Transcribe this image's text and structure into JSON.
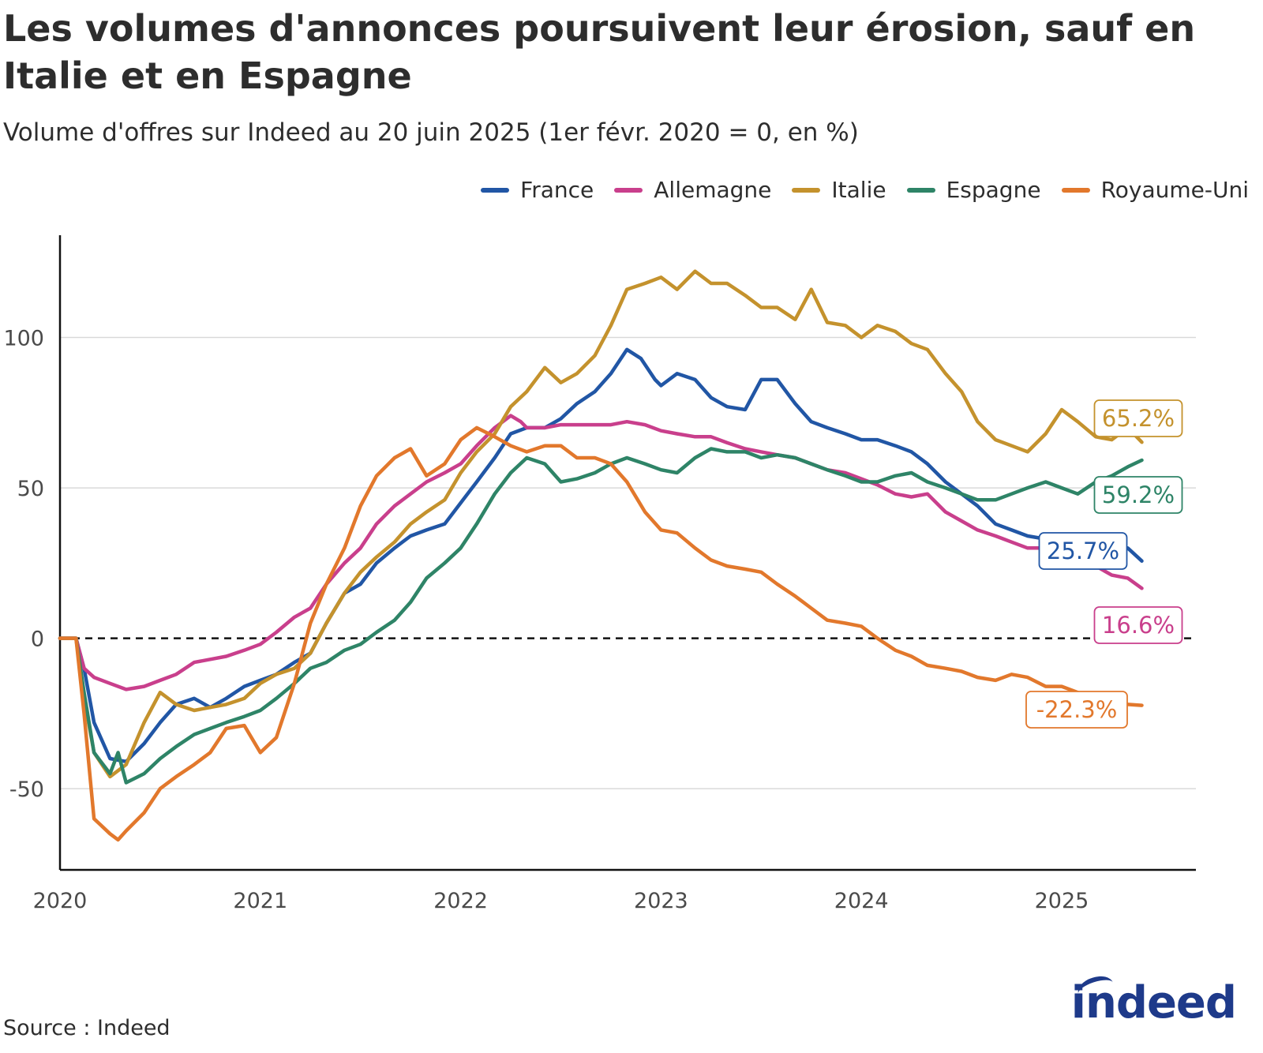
{
  "chart_data": {
    "type": "line",
    "title": "Les volumes d'annonces poursuivent leur érosion, sauf en Italie et en Espagne",
    "subtitle": "Volume d'offres sur Indeed au 20 juin 2025 (1er févr. 2020 = 0, en %)",
    "xlabel": "",
    "ylabel": "",
    "xlim": [
      2020.0,
      2025.67
    ],
    "ylim": [
      -77,
      134
    ],
    "x_ticks": [
      2020,
      2021,
      2022,
      2023,
      2024,
      2025
    ],
    "x_tick_labels": [
      "2020",
      "2021",
      "2022",
      "2023",
      "2024",
      "2025"
    ],
    "y_ticks": [
      -50,
      0,
      50,
      100
    ],
    "y_tick_labels": [
      "-50",
      "0",
      "50",
      "100"
    ],
    "baseline": 0,
    "grid": "horizontal",
    "legend_position": "top-right",
    "series": [
      {
        "name": "France",
        "color": "#2156a5",
        "end_label": "25.7%",
        "x": [
          2020.0,
          2020.08,
          2020.12,
          2020.17,
          2020.25,
          2020.33,
          2020.42,
          2020.5,
          2020.58,
          2020.67,
          2020.75,
          2020.83,
          2020.92,
          2021.0,
          2021.08,
          2021.17,
          2021.25,
          2021.33,
          2021.42,
          2021.5,
          2021.58,
          2021.67,
          2021.75,
          2021.83,
          2021.92,
          2022.0,
          2022.08,
          2022.17,
          2022.25,
          2022.33,
          2022.42,
          2022.5,
          2022.58,
          2022.67,
          2022.75,
          2022.83,
          2022.9,
          2022.97,
          2023.0,
          2023.08,
          2023.17,
          2023.25,
          2023.33,
          2023.42,
          2023.5,
          2023.58,
          2023.67,
          2023.75,
          2023.83,
          2023.92,
          2024.0,
          2024.08,
          2024.17,
          2024.25,
          2024.33,
          2024.42,
          2024.5,
          2024.58,
          2024.67,
          2024.75,
          2024.83,
          2024.92,
          2025.0,
          2025.08,
          2025.17,
          2025.25,
          2025.33,
          2025.4
        ],
        "y": [
          0,
          0,
          -10,
          -28,
          -40,
          -41,
          -35,
          -28,
          -22,
          -20,
          -23,
          -20,
          -16,
          -14,
          -12,
          -8,
          -5,
          5,
          15,
          18,
          25,
          30,
          34,
          36,
          38,
          45,
          52,
          60,
          68,
          70,
          70,
          73,
          78,
          82,
          88,
          96,
          93,
          86,
          84,
          88,
          86,
          80,
          77,
          76,
          86,
          86,
          78,
          72,
          70,
          68,
          66,
          66,
          64,
          62,
          58,
          52,
          48,
          44,
          38,
          36,
          34,
          33,
          31,
          31,
          31,
          31,
          30,
          25.7
        ]
      },
      {
        "name": "Allemagne",
        "color": "#c93f8c",
        "end_label": "16.6%",
        "x": [
          2020.0,
          2020.08,
          2020.12,
          2020.17,
          2020.25,
          2020.33,
          2020.42,
          2020.5,
          2020.58,
          2020.67,
          2020.75,
          2020.83,
          2020.92,
          2021.0,
          2021.08,
          2021.17,
          2021.25,
          2021.33,
          2021.42,
          2021.5,
          2021.58,
          2021.67,
          2021.75,
          2021.83,
          2021.92,
          2022.0,
          2022.08,
          2022.17,
          2022.25,
          2022.3,
          2022.33,
          2022.42,
          2022.5,
          2022.58,
          2022.67,
          2022.75,
          2022.83,
          2022.92,
          2023.0,
          2023.08,
          2023.17,
          2023.25,
          2023.33,
          2023.42,
          2023.5,
          2023.58,
          2023.67,
          2023.75,
          2023.83,
          2023.92,
          2024.0,
          2024.08,
          2024.17,
          2024.25,
          2024.33,
          2024.42,
          2024.5,
          2024.58,
          2024.67,
          2024.75,
          2024.83,
          2024.92,
          2025.0,
          2025.08,
          2025.17,
          2025.25,
          2025.33,
          2025.4
        ],
        "y": [
          0,
          0,
          -10,
          -13,
          -15,
          -17,
          -16,
          -14,
          -12,
          -8,
          -7,
          -6,
          -4,
          -2,
          2,
          7,
          10,
          18,
          25,
          30,
          38,
          44,
          48,
          52,
          55,
          58,
          64,
          70,
          74,
          72,
          70,
          70,
          71,
          71,
          71,
          71,
          72,
          71,
          69,
          68,
          67,
          67,
          65,
          63,
          62,
          61,
          60,
          58,
          56,
          55,
          53,
          51,
          48,
          47,
          48,
          42,
          39,
          36,
          34,
          32,
          30,
          30,
          30,
          28,
          24,
          21,
          20,
          16.6
        ]
      },
      {
        "name": "Italie",
        "color": "#c4922d",
        "end_label": "65.2%",
        "x": [
          2020.0,
          2020.08,
          2020.12,
          2020.17,
          2020.25,
          2020.33,
          2020.42,
          2020.5,
          2020.58,
          2020.67,
          2020.75,
          2020.83,
          2020.92,
          2021.0,
          2021.08,
          2021.17,
          2021.25,
          2021.33,
          2021.42,
          2021.5,
          2021.58,
          2021.67,
          2021.75,
          2021.83,
          2021.92,
          2022.0,
          2022.08,
          2022.17,
          2022.25,
          2022.33,
          2022.42,
          2022.5,
          2022.58,
          2022.67,
          2022.75,
          2022.83,
          2022.92,
          2023.0,
          2023.08,
          2023.17,
          2023.25,
          2023.33,
          2023.42,
          2023.5,
          2023.58,
          2023.67,
          2023.75,
          2023.83,
          2023.92,
          2024.0,
          2024.08,
          2024.17,
          2024.25,
          2024.33,
          2024.42,
          2024.5,
          2024.58,
          2024.67,
          2024.75,
          2024.83,
          2024.92,
          2025.0,
          2025.08,
          2025.17,
          2025.25,
          2025.33,
          2025.4
        ],
        "y": [
          0,
          0,
          -20,
          -38,
          -46,
          -42,
          -28,
          -18,
          -22,
          -24,
          -23,
          -22,
          -20,
          -15,
          -12,
          -10,
          -5,
          5,
          15,
          22,
          27,
          32,
          38,
          42,
          46,
          55,
          62,
          68,
          77,
          82,
          90,
          85,
          88,
          94,
          104,
          116,
          118,
          120,
          116,
          122,
          118,
          118,
          114,
          110,
          110,
          106,
          116,
          105,
          104,
          100,
          104,
          102,
          98,
          96,
          88,
          82,
          72,
          66,
          64,
          62,
          68,
          76,
          72,
          67,
          66,
          70,
          65.2
        ]
      },
      {
        "name": "Espagne",
        "color": "#2e8467",
        "end_label": "59.2%",
        "x": [
          2020.0,
          2020.08,
          2020.12,
          2020.17,
          2020.25,
          2020.29,
          2020.33,
          2020.42,
          2020.5,
          2020.58,
          2020.67,
          2020.75,
          2020.83,
          2020.92,
          2021.0,
          2021.08,
          2021.17,
          2021.25,
          2021.33,
          2021.42,
          2021.5,
          2021.58,
          2021.67,
          2021.75,
          2021.83,
          2021.92,
          2022.0,
          2022.08,
          2022.17,
          2022.25,
          2022.33,
          2022.42,
          2022.5,
          2022.58,
          2022.67,
          2022.75,
          2022.83,
          2022.92,
          2023.0,
          2023.08,
          2023.17,
          2023.25,
          2023.33,
          2023.42,
          2023.5,
          2023.58,
          2023.67,
          2023.75,
          2023.83,
          2023.92,
          2024.0,
          2024.08,
          2024.17,
          2024.25,
          2024.33,
          2024.42,
          2024.5,
          2024.58,
          2024.67,
          2024.75,
          2024.83,
          2024.92,
          2025.0,
          2025.08,
          2025.17,
          2025.25,
          2025.33,
          2025.4
        ],
        "y": [
          0,
          0,
          -18,
          -38,
          -45,
          -38,
          -48,
          -45,
          -40,
          -36,
          -32,
          -30,
          -28,
          -26,
          -24,
          -20,
          -15,
          -10,
          -8,
          -4,
          -2,
          2,
          6,
          12,
          20,
          25,
          30,
          38,
          48,
          55,
          60,
          58,
          52,
          53,
          55,
          58,
          60,
          58,
          56,
          55,
          60,
          63,
          62,
          62,
          60,
          61,
          60,
          58,
          56,
          54,
          52,
          52,
          54,
          55,
          52,
          50,
          48,
          46,
          46,
          48,
          50,
          52,
          50,
          48,
          52,
          54,
          57,
          59.2
        ]
      },
      {
        "name": "Royaume-Uni",
        "color": "#e2782c",
        "end_label": "-22.3%",
        "x": [
          2020.0,
          2020.08,
          2020.12,
          2020.17,
          2020.25,
          2020.29,
          2020.33,
          2020.42,
          2020.5,
          2020.58,
          2020.67,
          2020.75,
          2020.83,
          2020.92,
          2021.0,
          2021.08,
          2021.17,
          2021.25,
          2021.33,
          2021.42,
          2021.5,
          2021.58,
          2021.67,
          2021.75,
          2021.83,
          2021.92,
          2022.0,
          2022.08,
          2022.17,
          2022.25,
          2022.33,
          2022.42,
          2022.5,
          2022.58,
          2022.67,
          2022.75,
          2022.83,
          2022.92,
          2023.0,
          2023.08,
          2023.17,
          2023.25,
          2023.33,
          2023.42,
          2023.5,
          2023.58,
          2023.67,
          2023.75,
          2023.83,
          2023.92,
          2024.0,
          2024.08,
          2024.17,
          2024.25,
          2024.33,
          2024.42,
          2024.5,
          2024.58,
          2024.67,
          2024.75,
          2024.83,
          2024.92,
          2025.0,
          2025.08,
          2025.17,
          2025.25,
          2025.33,
          2025.4
        ],
        "y": [
          0,
          0,
          -25,
          -60,
          -65,
          -67,
          -64,
          -58,
          -50,
          -46,
          -42,
          -38,
          -30,
          -29,
          -38,
          -33,
          -15,
          5,
          18,
          30,
          44,
          54,
          60,
          63,
          54,
          58,
          66,
          70,
          67,
          64,
          62,
          64,
          64,
          60,
          60,
          58,
          52,
          42,
          36,
          35,
          30,
          26,
          24,
          23,
          22,
          18,
          14,
          10,
          6,
          5,
          4,
          0,
          -4,
          -6,
          -9,
          -10,
          -11,
          -13,
          -14,
          -12,
          -13,
          -16,
          -16,
          -18,
          -20,
          -21,
          -22,
          -22.3
        ]
      }
    ]
  },
  "source": "Source : Indeed",
  "logo_text": "indeed"
}
